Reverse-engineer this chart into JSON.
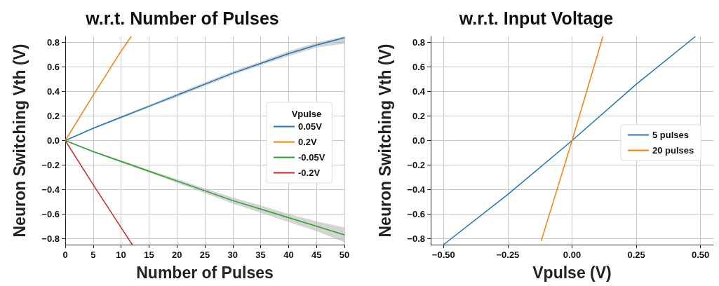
{
  "chart_data": [
    {
      "type": "line",
      "title": "w.r.t. Number of Pulses",
      "xlabel": "Number of Pulses",
      "ylabel": "Neuron Switching Vth (V)",
      "legend_title": "Vpulse",
      "legend": "right",
      "grid": true,
      "marker": "none",
      "xlim": [
        0,
        50
      ],
      "xticks": [
        0,
        5,
        10,
        15,
        20,
        25,
        30,
        35,
        40,
        45,
        50
      ],
      "ylim": [
        -0.85,
        0.85
      ],
      "yticks": [
        {
          "value": -0.8,
          "label": "−0.8"
        },
        {
          "value": -0.6,
          "label": "−0.6"
        },
        {
          "value": -0.4,
          "label": "−0.4"
        },
        {
          "value": -0.2,
          "label": "−0.2"
        },
        {
          "value": 0,
          "label": "0.0"
        },
        {
          "value": 0.2,
          "label": "0.2"
        },
        {
          "value": 0.4,
          "label": "0.4"
        },
        {
          "value": 0.6,
          "label": "0.6"
        },
        {
          "value": 0.8,
          "label": "0.8"
        }
      ],
      "series": [
        {
          "name": "0.05V",
          "color": "#1f77b4",
          "x": [
            0,
            5,
            10,
            15,
            20,
            25,
            30,
            35,
            40,
            45,
            50
          ],
          "values": [
            0,
            0.1,
            0.19,
            0.28,
            0.37,
            0.46,
            0.55,
            0.63,
            0.71,
            0.78,
            0.84
          ],
          "lower": [
            0,
            0.095,
            0.18,
            0.27,
            0.355,
            0.445,
            0.535,
            0.615,
            0.69,
            0.76,
            0.79
          ],
          "upper": [
            0,
            0.105,
            0.2,
            0.29,
            0.385,
            0.475,
            0.565,
            0.645,
            0.73,
            0.8,
            0.85
          ]
        },
        {
          "name": "0.2V",
          "color": "#ff7f0e",
          "x": [
            0,
            5,
            10,
            11.8
          ],
          "values": [
            0,
            0.37,
            0.73,
            0.85
          ]
        },
        {
          "name": "-0.05V",
          "color": "#2ca02c",
          "x": [
            0,
            5,
            10,
            15,
            20,
            25,
            30,
            35,
            40,
            45,
            50
          ],
          "values": [
            0,
            -0.09,
            -0.17,
            -0.25,
            -0.33,
            -0.41,
            -0.49,
            -0.56,
            -0.63,
            -0.7,
            -0.77
          ],
          "lower": [
            0,
            -0.095,
            -0.18,
            -0.26,
            -0.345,
            -0.43,
            -0.515,
            -0.59,
            -0.665,
            -0.74,
            -0.83
          ],
          "upper": [
            0,
            -0.085,
            -0.16,
            -0.24,
            -0.315,
            -0.39,
            -0.465,
            -0.53,
            -0.6,
            -0.66,
            -0.71
          ]
        },
        {
          "name": "-0.2V",
          "color": "#d62728",
          "x": [
            0,
            5,
            10,
            12
          ],
          "values": [
            0,
            -0.36,
            -0.71,
            -0.85
          ]
        }
      ]
    },
    {
      "type": "line",
      "title": "w.r.t. Input Voltage",
      "xlabel": "Vpulse (V)",
      "ylabel": "Neuron Switching Vth (V)",
      "legend": "right",
      "grid": true,
      "marker": "none",
      "xlim": [
        -0.55,
        0.55
      ],
      "xticks": [
        {
          "value": -0.5,
          "label": "−0.50"
        },
        {
          "value": -0.25,
          "label": "−0.25"
        },
        {
          "value": 0,
          "label": "0.00"
        },
        {
          "value": 0.25,
          "label": "0.25"
        },
        {
          "value": 0.5,
          "label": "0.50"
        }
      ],
      "ylim": [
        -0.85,
        0.85
      ],
      "yticks": [
        {
          "value": -0.8,
          "label": "−0.8"
        },
        {
          "value": -0.6,
          "label": "−0.6"
        },
        {
          "value": -0.4,
          "label": "−0.4"
        },
        {
          "value": -0.2,
          "label": "−0.2"
        },
        {
          "value": 0,
          "label": "0.0"
        },
        {
          "value": 0.2,
          "label": "0.2"
        },
        {
          "value": 0.4,
          "label": "0.4"
        },
        {
          "value": 0.6,
          "label": "0.6"
        },
        {
          "value": 0.8,
          "label": "0.8"
        }
      ],
      "series": [
        {
          "name": "5 pulses",
          "color": "#1f77b4",
          "x": [
            -0.5,
            -0.25,
            0,
            0.25,
            0.48
          ],
          "values": [
            -0.85,
            -0.44,
            0,
            0.46,
            0.85
          ]
        },
        {
          "name": "20 pulses",
          "color": "#ff7f0e",
          "x": [
            -0.12,
            0,
            0.12
          ],
          "values": [
            -0.82,
            0,
            0.85
          ]
        }
      ]
    }
  ]
}
